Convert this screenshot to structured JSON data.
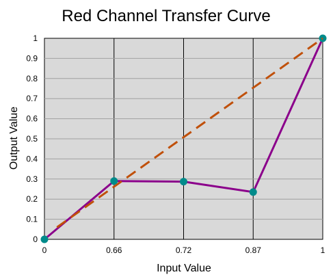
{
  "chart_data": {
    "type": "line",
    "title": "Red Channel Transfer Curve",
    "xlabel": "Input Value",
    "ylabel": "Output Value",
    "x_tick_labels": [
      "0",
      "0.66",
      "0.72",
      "0.87",
      "1"
    ],
    "y_ticks": [
      "0",
      "0.1",
      "0.2",
      "0.3",
      "0.4",
      "0.5",
      "0.6",
      "0.7",
      "0.8",
      "0.9",
      "1"
    ],
    "ylim": [
      0,
      1
    ],
    "grid": true,
    "plot_background": "#d9d9d9",
    "series": [
      {
        "color": "#8b008b",
        "style": "solid",
        "markers": true,
        "marker_color": "#008b8b",
        "x_index": [
          0,
          1,
          2,
          3,
          4
        ],
        "y": [
          0.0,
          0.29,
          0.287,
          0.235,
          1.0
        ]
      },
      {
        "color": "#c0500a",
        "style": "dashed",
        "markers": false,
        "x_index": [
          0.18,
          4
        ],
        "y": [
          0.06,
          1.0
        ]
      }
    ]
  }
}
